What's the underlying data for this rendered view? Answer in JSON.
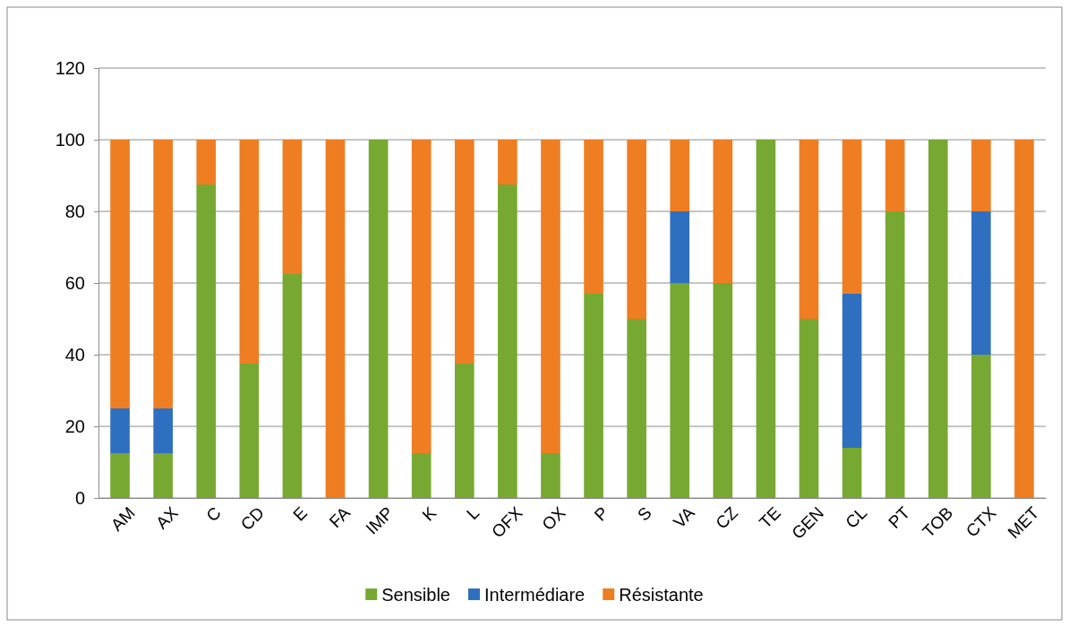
{
  "chart_data": {
    "type": "bar",
    "stacked": true,
    "categories": [
      "AM",
      "AX",
      "C",
      "CD",
      "E",
      "FA",
      "IMP",
      "K",
      "L",
      "OFX",
      "OX",
      "P",
      "S",
      "VA",
      "CZ",
      "TE",
      "GEN",
      "CL",
      "PT",
      "TOB",
      "CTX",
      "MET"
    ],
    "series": [
      {
        "name": "Sensible",
        "color": "#77a832",
        "values": [
          12.5,
          12.5,
          87.5,
          37.5,
          62.5,
          0,
          100,
          12.5,
          37.5,
          87.5,
          12.5,
          57,
          50,
          60,
          60,
          100,
          50,
          14,
          80,
          100,
          40,
          0
        ]
      },
      {
        "name": "Intermédiare",
        "color": "#2f6fbf",
        "values": [
          12.5,
          12.5,
          0,
          0,
          0,
          0,
          0,
          0,
          0,
          0,
          0,
          0,
          0,
          20,
          0,
          0,
          0,
          43,
          0,
          0,
          40,
          0
        ]
      },
      {
        "name": "Résistante",
        "color": "#ef7d22",
        "values": [
          75,
          75,
          12.5,
          62.5,
          37.5,
          100,
          0,
          87.5,
          62.5,
          12.5,
          87.5,
          43,
          50,
          20,
          40,
          0,
          50,
          43,
          20,
          0,
          20,
          100
        ]
      }
    ],
    "ylim": [
      0,
      120
    ],
    "yticks": [
      0,
      20,
      40,
      60,
      80,
      100,
      120
    ],
    "grid": "y",
    "legend": "bottom"
  }
}
